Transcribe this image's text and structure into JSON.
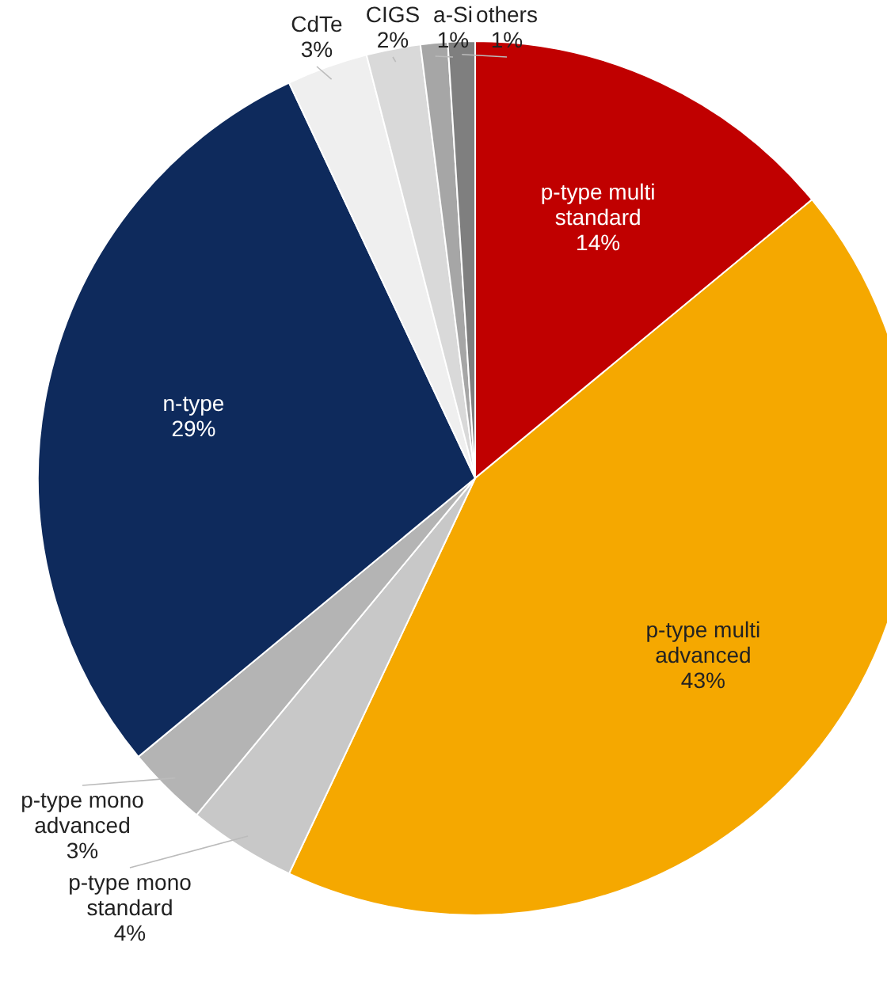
{
  "chart_data": {
    "type": "pie",
    "categories": [
      "p-type multi standard",
      "p-type multi advanced",
      "p-type mono standard",
      "p-type mono advanced",
      "n-type",
      "CdTe",
      "CIGS",
      "a-Si",
      "others"
    ],
    "values": [
      14,
      43,
      4,
      3,
      29,
      3,
      2,
      1,
      1
    ],
    "colors": [
      "#c00000",
      "#f5a800",
      "#c8c8c8",
      "#b4b4b4",
      "#0e2a5c",
      "#efefef",
      "#d9d9d9",
      "#a6a6a6",
      "#7f7f7f"
    ],
    "value_labels": [
      "14%",
      "43%",
      "4%",
      "3%",
      "29%",
      "3%",
      "2%",
      "1%",
      "1%"
    ]
  }
}
